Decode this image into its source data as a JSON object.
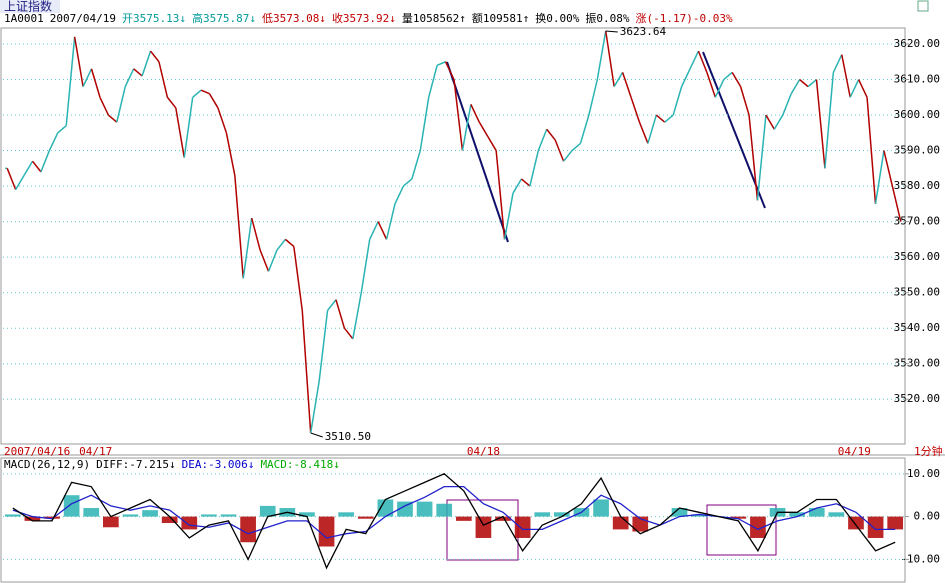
{
  "chart_data": [
    {
      "type": "line",
      "title": "上证指数",
      "period": "1分钟",
      "info": [
        {
          "text": "1A0001",
          "color": "#000000"
        },
        {
          "text": "2007/04/19",
          "color": "#000000"
        },
        {
          "text": "开3575.13↓",
          "color": "#009a9a"
        },
        {
          "text": "高3575.87↓",
          "color": "#009a9a"
        },
        {
          "text": "低3573.08↓",
          "color": "#c00000"
        },
        {
          "text": "收3573.92↓",
          "color": "#c00000"
        },
        {
          "text": "量1058562↑",
          "color": "#000000"
        },
        {
          "text": "额109581↑",
          "color": "#000000"
        },
        {
          "text": "换0.00%",
          "color": "#000000"
        },
        {
          "text": "振0.08%",
          "color": "#000000"
        },
        {
          "text": "涨(-1.17)-0.03%",
          "color": "#c00000"
        }
      ],
      "categories": [
        "2007/04/16",
        null,
        null,
        null,
        null,
        null,
        null,
        null,
        null,
        "04/17",
        null,
        null,
        null,
        null,
        null,
        null,
        null,
        null,
        null,
        null,
        null,
        null,
        null,
        null,
        null,
        null,
        null,
        null,
        null,
        null,
        null,
        null,
        null,
        null,
        null,
        null,
        null,
        null,
        null,
        null,
        null,
        null,
        null,
        null,
        null,
        null,
        null,
        null,
        null,
        null,
        null,
        null,
        null,
        null,
        null,
        "04/18",
        null,
        null,
        null,
        null,
        null,
        null,
        null,
        null,
        null,
        null,
        null,
        null,
        null,
        null,
        null,
        null,
        null,
        null,
        null,
        null,
        null,
        null,
        null,
        null,
        null,
        null,
        null,
        null,
        null,
        null,
        null,
        null,
        null,
        null,
        null,
        null,
        null,
        null,
        null,
        null,
        null,
        null,
        null,
        "04/19",
        null,
        null,
        null,
        null,
        null,
        null,
        null
      ],
      "values": [
        3585,
        3579,
        3583,
        3587,
        3584,
        3590,
        3595,
        3597,
        3622,
        3608,
        3613,
        3605,
        3600,
        3598,
        3608,
        3613,
        3611,
        3618,
        3615,
        3605,
        3602,
        3588,
        3605,
        3607,
        3606,
        3602,
        3595,
        3583,
        3554,
        3571,
        3562,
        3556,
        3562,
        3565,
        3563,
        3545,
        3510.5,
        3525,
        3545,
        3548,
        3540,
        3537,
        3550,
        3565,
        3570,
        3565,
        3575,
        3580,
        3582,
        3590,
        3605,
        3614,
        3615,
        3610,
        3590,
        3603,
        3598,
        3594,
        3590,
        3565,
        3578,
        3582,
        3580,
        3590,
        3596,
        3593,
        3587,
        3590,
        3592,
        3600,
        3610,
        3623.64,
        3608,
        3612,
        3605,
        3598,
        3592,
        3600,
        3598,
        3600,
        3608,
        3613,
        3618,
        3612,
        3605,
        3610,
        3612,
        3608,
        3600,
        3576,
        3600,
        3596,
        3600,
        3606,
        3610,
        3608,
        3610,
        3585,
        3612,
        3617,
        3605,
        3610,
        3605,
        3575,
        3590,
        3580,
        3570
      ],
      "up_color": "#2ab3b3",
      "down_color": "#b00000",
      "annotations": [
        {
          "value": 3623.64,
          "label": "3623.64"
        },
        {
          "value": 3510.5,
          "label": "3510.50"
        }
      ],
      "ylim": [
        3507.4,
        3624.5
      ],
      "yticks": [
        {
          "value": 3620,
          "label": "3620.00"
        },
        {
          "value": 3610,
          "label": "3610.00"
        },
        {
          "value": 3600,
          "label": "3600.00"
        },
        {
          "value": 3590,
          "label": "3590.00"
        },
        {
          "value": 3580,
          "label": "3580.00"
        },
        {
          "value": 3570,
          "label": "3570.00"
        },
        {
          "value": 3560,
          "label": "3560.00"
        },
        {
          "value": 3550,
          "label": "3550.00"
        },
        {
          "value": 3540,
          "label": "3540.00"
        },
        {
          "value": 3530,
          "label": "3530.00"
        },
        {
          "value": 3520,
          "label": "3520.00"
        }
      ],
      "grid": true
    },
    {
      "type": "macd",
      "info": [
        {
          "text": "MACD(26,12,9)",
          "color": "#000000"
        },
        {
          "text": "DIFF:-7.215↓",
          "color": "#000000"
        },
        {
          "text": "DEA:-3.006↓",
          "color": "#0000cc"
        },
        {
          "text": "MACD:-8.418↓",
          "color": "#00aa00"
        }
      ],
      "diff": {
        "color": "#000000",
        "values": [
          2,
          -1,
          -1,
          8,
          7,
          0,
          2,
          4,
          0,
          -5,
          -2,
          -1,
          -10,
          0,
          1,
          0,
          -12,
          -3,
          -4,
          4,
          6,
          8,
          10,
          6,
          -2,
          0,
          -8,
          -2,
          0,
          3,
          9,
          0,
          -4,
          -2,
          2,
          1,
          0,
          -1,
          -8,
          1,
          1,
          4,
          4,
          -2,
          -8,
          -6
        ]
      },
      "dea": {
        "color": "#2222cc",
        "values": [
          1.5,
          0,
          -0.5,
          3,
          5,
          2.5,
          1.5,
          2.5,
          1.5,
          -2,
          -2.5,
          -1.5,
          -4,
          -2.5,
          -1,
          -1,
          -5,
          -4,
          -3.5,
          0,
          2.5,
          4.5,
          7,
          7,
          3,
          1,
          -3,
          -3,
          -1,
          1,
          5,
          3,
          -0.5,
          -2,
          0,
          0.5,
          0,
          -0.5,
          -3,
          -1,
          0,
          2,
          3,
          1,
          -3,
          -3
        ]
      },
      "macd": {
        "up_color": "#2ab3b3",
        "down_color": "#b00000",
        "values": [
          0.5,
          -1,
          -0.5,
          5,
          2,
          -2.5,
          0.5,
          1.5,
          -1.5,
          -3,
          0.5,
          0.5,
          -6,
          2.5,
          2,
          1,
          -7,
          1,
          -0.5,
          4,
          3.5,
          3.5,
          3,
          -1,
          -5,
          -1,
          -5,
          1,
          1,
          2,
          4,
          -3,
          -3.5,
          0,
          2,
          0.5,
          0,
          -0.5,
          -5,
          2,
          1,
          2,
          1,
          -3,
          -5,
          -3
        ]
      },
      "ylim": [
        -15.3,
        13.7
      ],
      "yticks": [
        {
          "value": 10,
          "label": "10.00"
        },
        {
          "value": 0,
          "label": "0.00"
        },
        {
          "value": -10,
          "label": "-10.00"
        }
      ],
      "grid": true
    }
  ]
}
